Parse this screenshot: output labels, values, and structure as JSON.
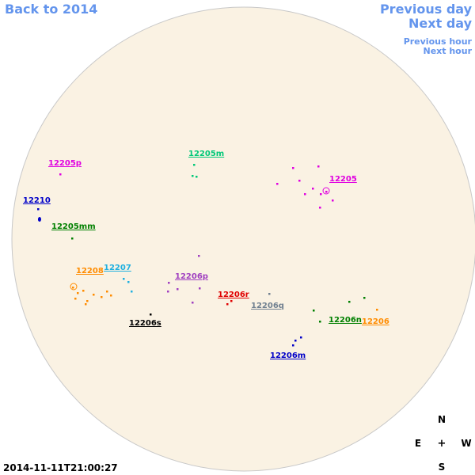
{
  "header": {
    "back_link": "Back to 2014",
    "previous_day": "Previous day",
    "next_day": "Next day",
    "previous_hour": "Previous hour",
    "next_hour": "Next hour"
  },
  "regions": [
    {
      "label": "12205p",
      "color": "#e000e0"
    },
    {
      "label": "12205m",
      "color": "#00c878"
    },
    {
      "label": "12205",
      "color": "#e000e0"
    },
    {
      "label": "12210",
      "color": "#0000c8"
    },
    {
      "label": "12205mm",
      "color": "#008000"
    },
    {
      "label": "12208",
      "color": "#ff8c00"
    },
    {
      "label": "12207",
      "color": "#20b0e0"
    },
    {
      "label": "12206p",
      "color": "#a040c0"
    },
    {
      "label": "12206r",
      "color": "#e00000"
    },
    {
      "label": "12206q",
      "color": "#708090"
    },
    {
      "label": "12206s",
      "color": "#000000"
    },
    {
      "label": "12206n",
      "color": "#008000"
    },
    {
      "label": "12206",
      "color": "#ff8c00"
    },
    {
      "label": "12206m",
      "color": "#0000c8"
    }
  ],
  "timestamp": "2014-11-11T21:00:27",
  "compass": {
    "north": "N",
    "east": "E",
    "center": "+",
    "west": "W",
    "south": "S"
  }
}
